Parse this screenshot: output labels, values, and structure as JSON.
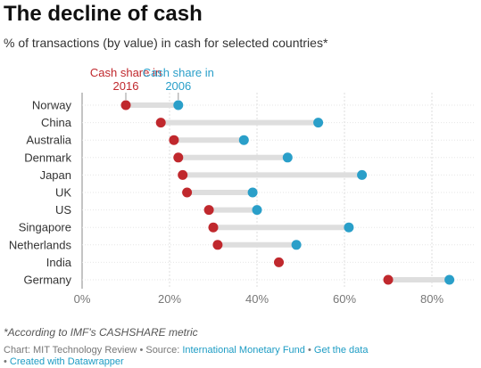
{
  "header": {
    "title": "The decline of cash",
    "subtitle": "% of transactions (by value) in cash for selected countries*"
  },
  "chart_data": {
    "type": "dot-range",
    "categories": [
      "Norway",
      "China",
      "Australia",
      "Denmark",
      "Japan",
      "UK",
      "US",
      "Singapore",
      "Netherlands",
      "India",
      "Germany"
    ],
    "series": [
      {
        "name": "Cash share in 2016",
        "color": "#c0282d",
        "values": [
          10,
          18,
          21,
          22,
          23,
          24,
          29,
          30,
          31,
          45,
          70
        ]
      },
      {
        "name": "Cash share in 2006",
        "color": "#2a9fc9",
        "values": [
          22,
          54,
          37,
          47,
          64,
          39,
          40,
          61,
          49,
          null,
          84
        ]
      }
    ],
    "series_labels": [
      {
        "line1": "Cash share in",
        "line2": "2016",
        "color": "#c0282d"
      },
      {
        "line1": "Cash share in",
        "line2": "2006",
        "color": "#2a9fc9"
      }
    ],
    "xlim": [
      0,
      90
    ],
    "xticks": [
      0,
      20,
      40,
      60,
      80
    ],
    "xtick_labels": [
      "0%",
      "20%",
      "40%",
      "60%",
      "80%"
    ],
    "grid": true
  },
  "footer": {
    "note": "*According to IMF's CASHSHARE metric",
    "chart_credit": "Chart: MIT Technology Review",
    "sep1": " • Source: ",
    "source_link": "International Monetary Fund",
    "sep2": " • ",
    "data_link": "Get the data",
    "sep3": " • ",
    "created_link": "Created with Datawrapper"
  }
}
